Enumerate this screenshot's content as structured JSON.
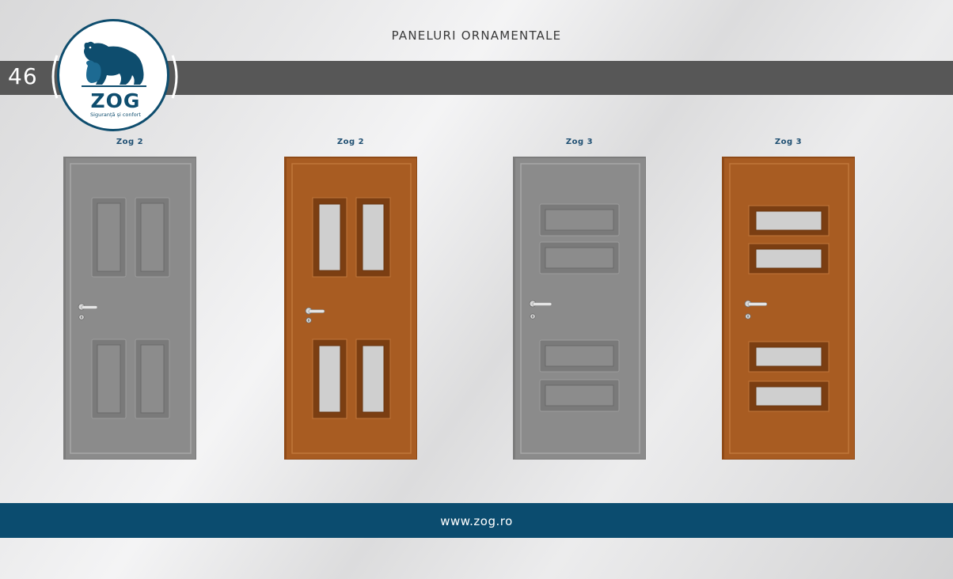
{
  "header": {
    "title": "PANELURI ORNAMENTALE",
    "page_number": "46"
  },
  "logo": {
    "brand": "ZOG",
    "tagline": "Siguranță și confort",
    "icon": "bear-icon",
    "color": "#0e4d6e"
  },
  "doors": [
    {
      "label": "Zog 2",
      "color": "gray",
      "panel_style": "four-vertical-solid"
    },
    {
      "label": "Zog 2",
      "color": "wood",
      "panel_style": "four-vertical-glazed"
    },
    {
      "label": "Zog 3",
      "color": "gray",
      "panel_style": "four-horizontal-solid"
    },
    {
      "label": "Zog 3",
      "color": "wood",
      "panel_style": "four-horizontal-glazed"
    }
  ],
  "colors": {
    "gray_door": "#8a8a8a",
    "wood_door": "#a85c22",
    "top_bar": "#575757",
    "footer_bar": "#0b4c6f"
  },
  "footer": {
    "url": "www.zog.ro"
  }
}
